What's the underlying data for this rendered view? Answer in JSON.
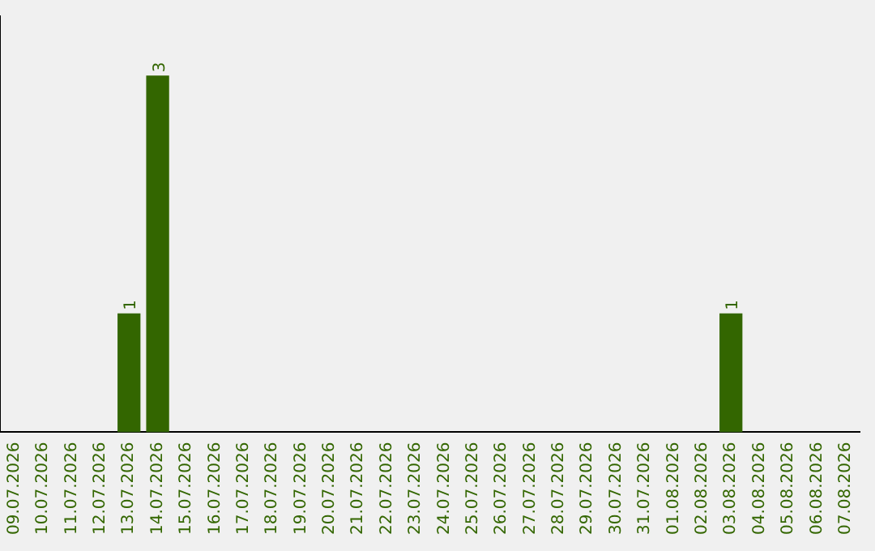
{
  "chart_data": {
    "type": "bar",
    "categories": [
      "09.07.2026",
      "10.07.2026",
      "11.07.2026",
      "12.07.2026",
      "13.07.2026",
      "14.07.2026",
      "15.07.2026",
      "16.07.2026",
      "17.07.2026",
      "18.07.2026",
      "19.07.2026",
      "20.07.2026",
      "21.07.2026",
      "22.07.2026",
      "23.07.2026",
      "24.07.2026",
      "25.07.2026",
      "26.07.2026",
      "27.07.2026",
      "28.07.2026",
      "29.07.2026",
      "30.07.2026",
      "31.07.2026",
      "01.08.2026",
      "02.08.2026",
      "03.08.2026",
      "04.08.2026",
      "05.08.2026",
      "06.08.2026",
      "07.08.2026"
    ],
    "values": [
      0,
      0,
      0,
      0,
      1,
      3,
      0,
      0,
      0,
      0,
      0,
      0,
      0,
      0,
      0,
      0,
      0,
      0,
      0,
      0,
      0,
      0,
      0,
      0,
      0,
      1,
      0,
      0,
      0,
      0
    ],
    "value_labels": [
      null,
      null,
      null,
      null,
      "1",
      "3",
      null,
      null,
      null,
      null,
      null,
      null,
      null,
      null,
      null,
      null,
      null,
      null,
      null,
      null,
      null,
      null,
      null,
      null,
      null,
      "1",
      null,
      null,
      null,
      null
    ],
    "color": "#336600",
    "tick_labels": "x",
    "grid": false,
    "legend": false
  }
}
